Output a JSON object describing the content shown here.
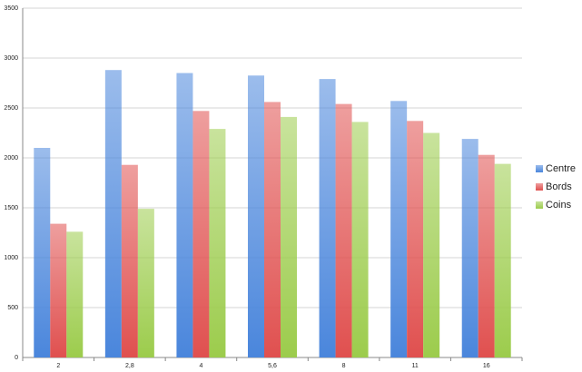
{
  "chart_data": {
    "type": "bar",
    "categories": [
      "2",
      "2,8",
      "4",
      "5,6",
      "8",
      "11",
      "16"
    ],
    "series": [
      {
        "name": "Centre",
        "color": "#4a86dc",
        "values": [
          2100,
          2880,
          2850,
          2825,
          2790,
          2570,
          2190
        ]
      },
      {
        "name": "Bords",
        "color": "#e0504f",
        "values": [
          1340,
          1930,
          2470,
          2560,
          2540,
          2370,
          2030
        ]
      },
      {
        "name": "Coins",
        "color": "#9ccc4c",
        "values": [
          1260,
          1490,
          2290,
          2410,
          2360,
          2250,
          1940
        ]
      }
    ],
    "ylim": [
      0,
      3500
    ],
    "yticks": [
      0,
      500,
      1000,
      1500,
      2000,
      2500,
      3000,
      3500
    ],
    "grid": true,
    "legend": "right"
  }
}
